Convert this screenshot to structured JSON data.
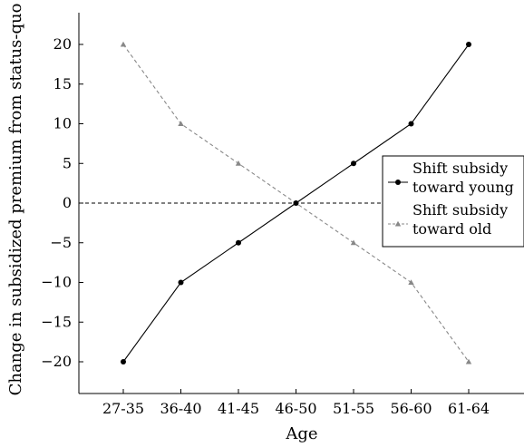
{
  "chart_data": {
    "type": "line",
    "title": "",
    "xlabel": "Age",
    "ylabel": "Change in subsidized premium from status-quo",
    "categories": [
      "27-35",
      "36-40",
      "41-45",
      "46-50",
      "51-55",
      "56-60",
      "61-64"
    ],
    "ylim": [
      -24,
      24
    ],
    "yticks": [
      -20,
      -15,
      -10,
      -5,
      0,
      5,
      10,
      15,
      20
    ],
    "ytick_labels": [
      "−20",
      "−15",
      "−10",
      "−5",
      "0",
      "5",
      "10",
      "15",
      "20"
    ],
    "grid": false,
    "reference_line": {
      "y": 0,
      "style": "dashed",
      "color": "#000000"
    },
    "legend": {
      "placement": "right"
    },
    "series": [
      {
        "name": "Shift subsidy toward young",
        "legend_lines": [
          "Shift subsidy",
          "toward young"
        ],
        "values": [
          -20,
          -10,
          -5,
          0,
          5,
          10,
          20
        ],
        "color": "#000000",
        "line_style": "solid",
        "marker": "circle"
      },
      {
        "name": "Shift subsidy toward old",
        "legend_lines": [
          "Shift subsidy",
          "toward old"
        ],
        "values": [
          20,
          10,
          5,
          0,
          -5,
          -10,
          -20
        ],
        "color": "#888888",
        "line_style": "dashed",
        "marker": "triangle"
      }
    ]
  }
}
